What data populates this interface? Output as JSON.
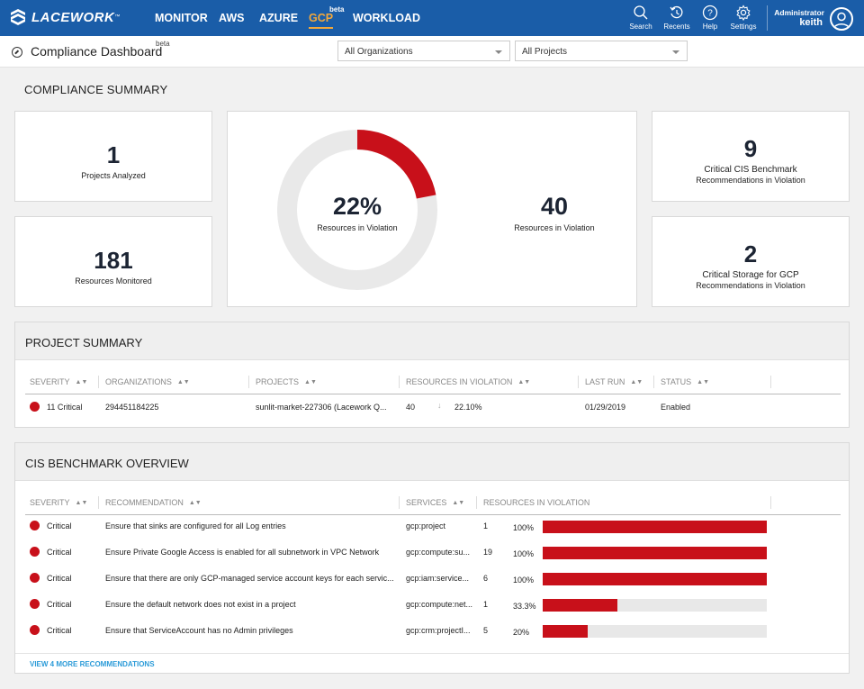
{
  "nav": {
    "logo_text": "LACEWORK",
    "items": [
      {
        "label": "MONITOR"
      },
      {
        "label": "AWS"
      },
      {
        "label": "AZURE"
      },
      {
        "label": "GCP",
        "badge": "beta"
      },
      {
        "label": "WORKLOAD"
      }
    ],
    "active_item": "GCP",
    "tools": [
      {
        "label": "Search",
        "icon": "search-icon"
      },
      {
        "label": "Recents",
        "icon": "history-icon"
      },
      {
        "label": "Help",
        "icon": "help-icon"
      },
      {
        "label": "Settings",
        "icon": "gear-icon"
      }
    ],
    "user": {
      "role": "Administrator",
      "name": "keith"
    },
    "accent_color": "#f2a83b",
    "bar_color": "#1a5da8"
  },
  "header": {
    "title": "Compliance Dashboard",
    "badge": "beta",
    "org_select": "All Organizations",
    "project_select": "All Projects"
  },
  "summary": {
    "title": "COMPLIANCE SUMMARY",
    "projects_analyzed": {
      "value": "1",
      "label": "Projects Analyzed"
    },
    "resources_monitored": {
      "value": "181",
      "label": "Resources Monitored"
    },
    "donut": {
      "percent_text": "22%",
      "label": "Resources in Violation",
      "fraction": 0.22
    },
    "violations": {
      "value": "40",
      "label": "Resources in Violation"
    },
    "cis": {
      "value": "9",
      "label1": "Critical CIS Benchmark",
      "label2": "Recommendations in Violation"
    },
    "storage": {
      "value": "2",
      "label1": "Critical Storage for GCP",
      "label2": "Recommendations in Violation"
    }
  },
  "project_summary": {
    "title": "PROJECT SUMMARY",
    "columns": [
      "SEVERITY",
      "ORGANIZATIONS",
      "PROJECTS",
      "RESOURCES IN VIOLATION",
      "LAST RUN",
      "STATUS"
    ],
    "rows": [
      {
        "severity": "11 Critical",
        "organization": "294451184225",
        "project": "sunlit-market-227306 (Lacework Q...",
        "resources": "40",
        "trend": "↓",
        "percent": "22.10%",
        "last_run": "01/29/2019",
        "status": "Enabled"
      }
    ]
  },
  "cis_overview": {
    "title": "CIS BENCHMARK OVERVIEW",
    "columns": [
      "SEVERITY",
      "RECOMMENDATION",
      "SERVICES",
      "RESOURCES IN VIOLATION"
    ],
    "rows": [
      {
        "severity": "Critical",
        "recommendation": "Ensure that sinks are configured for all Log entries",
        "service": "gcp:project",
        "count": "1",
        "percent": "100%",
        "fraction": 1.0
      },
      {
        "severity": "Critical",
        "recommendation": "Ensure Private Google Access is enabled for all subnetwork in VPC Network",
        "service": "gcp:compute:su...",
        "count": "19",
        "percent": "100%",
        "fraction": 1.0
      },
      {
        "severity": "Critical",
        "recommendation": "Ensure that there are only GCP-managed service account keys for each servic...",
        "service": "gcp:iam:service...",
        "count": "6",
        "percent": "100%",
        "fraction": 1.0
      },
      {
        "severity": "Critical",
        "recommendation": "Ensure the default network does not exist in a project",
        "service": "gcp:compute:net...",
        "count": "1",
        "percent": "33.3%",
        "fraction": 0.333
      },
      {
        "severity": "Critical",
        "recommendation": "Ensure that ServiceAccount has no Admin privileges",
        "service": "gcp:crm:projectI...",
        "count": "5",
        "percent": "20%",
        "fraction": 0.2
      }
    ],
    "more_link": "VIEW 4 MORE RECOMMENDATIONS"
  },
  "colors": {
    "critical": "#c8101a",
    "track": "#e8e8e8",
    "link": "#2b9bd8"
  }
}
